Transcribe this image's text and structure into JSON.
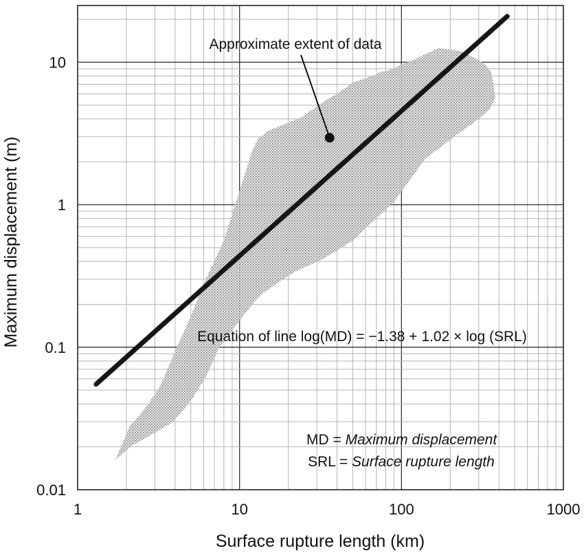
{
  "chart_data": {
    "type": "scatter",
    "scale": "log-log",
    "xlabel": "Surface rupture length (km)",
    "ylabel": "Maximum displacement (m)",
    "xlim": [
      1,
      1000
    ],
    "ylim": [
      0.01,
      25
    ],
    "x_ticks": [
      1,
      10,
      100,
      1000
    ],
    "x_tick_labels": [
      "1",
      "10",
      "100",
      "1000"
    ],
    "y_ticks": [
      0.01,
      0.1,
      1,
      10
    ],
    "y_tick_labels": [
      "0.01",
      "0.1",
      "1",
      "10"
    ],
    "grid": true,
    "series": [
      {
        "name": "Regression line",
        "kind": "line",
        "x": [
          1.3,
          450
        ],
        "y": [
          0.055,
          21
        ]
      },
      {
        "name": "Approximate extent of data",
        "kind": "shaded-region",
        "x": [
          1.7,
          2.1,
          2.8,
          3.9,
          5.0,
          6.2,
          7.5,
          10.5,
          12,
          14,
          17,
          22,
          32,
          50,
          90,
          140,
          220,
          300,
          350,
          380,
          360,
          330,
          290,
          230,
          170,
          120,
          90,
          80,
          75,
          66,
          50,
          40,
          35,
          30,
          24,
          15,
          13,
          12,
          10.5,
          8.0,
          6.1,
          5.0,
          4.1,
          3.2,
          2.6,
          2.1,
          1.85,
          1.7
        ],
        "y": [
          0.016,
          0.02,
          0.024,
          0.03,
          0.042,
          0.062,
          0.1,
          0.165,
          0.2,
          0.24,
          0.28,
          0.34,
          0.41,
          0.56,
          1.05,
          2.1,
          3.1,
          4.0,
          4.7,
          5.6,
          8.5,
          9.6,
          10.6,
          12.0,
          12.6,
          10.5,
          9.1,
          8.6,
          8.6,
          8.0,
          7.2,
          6.0,
          5.5,
          4.9,
          4.1,
          3.3,
          2.9,
          2.4,
          1.5,
          0.56,
          0.29,
          0.165,
          0.1,
          0.052,
          0.037,
          0.028,
          0.02,
          0.016
        ]
      }
    ],
    "annotations": {
      "extent": "Approximate extent of data",
      "extent_point": [
        36,
        2.95
      ],
      "equation": "Equation of line log(MD) = −1.38 + 1.02 × log (SRL)",
      "legend_md_abbr": "MD",
      "legend_md_sep": " = ",
      "legend_md_def": "Maximum displacement",
      "legend_srl_abbr": "SRL",
      "legend_srl_sep": " = ",
      "legend_srl_def": "Surface rupture length"
    }
  }
}
